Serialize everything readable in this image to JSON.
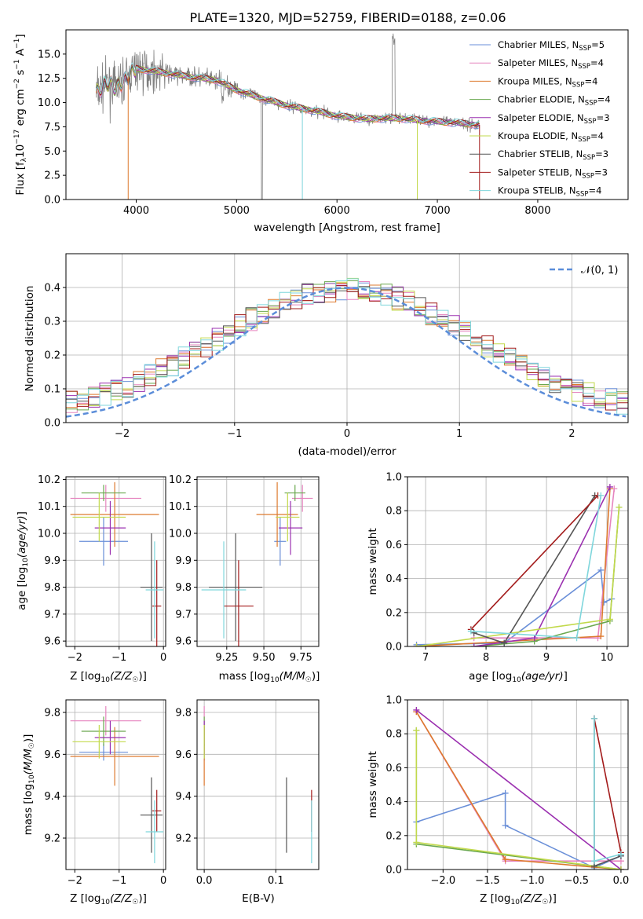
{
  "colors": {
    "Chabrier MILES": "#6a8fd8",
    "Salpeter MILES": "#e685bf",
    "Kroupa MILES": "#dd7a2e",
    "Chabrier ELODIE": "#6aa84f",
    "Salpeter ELODIE": "#9b30b0",
    "Kroupa ELODIE": "#c2d94c",
    "Chabrier STELIB": "#555555",
    "Salpeter STELIB": "#a31b1b",
    "Kroupa STELIB": "#7fd6dc",
    "data": "#808080"
  },
  "chart_data": [
    {
      "type": "line",
      "title": "PLATE=1320, MJD=52759, FIBERID=0188, z=0.06",
      "xlabel": "wavelength [Angstrom, rest frame]",
      "ylabel": "Flux [f$_\\lambda$10$^{-17}$ erg cm$^{-2}$ s$^{-1}$ A$^{-1}$]",
      "xlim": [
        3300,
        8900
      ],
      "ylim": [
        0,
        17.5
      ],
      "xticks": [
        4000,
        5000,
        6000,
        7000,
        8000
      ],
      "yticks": [
        0.0,
        2.5,
        5.0,
        7.5,
        10.0,
        12.5,
        15.0
      ],
      "legend_position": "upper-right",
      "legend": [
        {
          "model": "Chabrier MILES",
          "label": "Chabrier MILES, N",
          "sub": "SSP",
          "suffix": "=5"
        },
        {
          "model": "Salpeter MILES",
          "label": "Salpeter MILES, N",
          "sub": "SSP",
          "suffix": "=4"
        },
        {
          "model": "Kroupa MILES",
          "label": "Kroupa MILES, N",
          "sub": "SSP",
          "suffix": "=4"
        },
        {
          "model": "Chabrier ELODIE",
          "label": "Chabrier ELODIE, N",
          "sub": "SSP",
          "suffix": "=4"
        },
        {
          "model": "Salpeter ELODIE",
          "label": "Salpeter ELODIE, N",
          "sub": "SSP",
          "suffix": "=3"
        },
        {
          "model": "Kroupa ELODIE",
          "label": "Kroupa ELODIE, N",
          "sub": "SSP",
          "suffix": "=4"
        },
        {
          "model": "Chabrier STELIB",
          "label": "Chabrier STELIB, N",
          "sub": "SSP",
          "suffix": "=3"
        },
        {
          "model": "Salpeter STELIB",
          "label": "Salpeter STELIB, N",
          "sub": "SSP",
          "suffix": "=3"
        },
        {
          "model": "Kroupa STELIB",
          "label": "Kroupa STELIB, N",
          "sub": "SSP",
          "suffix": "=4"
        }
      ],
      "continuum": {
        "x": [
          3600,
          3700,
          3800,
          3900,
          4000,
          4200,
          4500,
          4800,
          5000,
          5200,
          5500,
          5800,
          6000,
          6300,
          6600,
          6900,
          7200,
          7400
        ],
        "y": [
          11.0,
          12.0,
          11.5,
          12.5,
          13.5,
          13.2,
          12.7,
          12.3,
          11.3,
          10.6,
          9.7,
          9.1,
          8.6,
          8.3,
          8.4,
          8.1,
          7.9,
          7.7
        ]
      }
    },
    {
      "type": "line",
      "xlabel": "(data-model)/error",
      "ylabel": "Normed distribution",
      "xlim": [
        -2.5,
        2.5
      ],
      "ylim": [
        0,
        0.5
      ],
      "xticks": [
        -2,
        -1,
        0,
        1,
        2
      ],
      "yticks": [
        0.0,
        0.1,
        0.2,
        0.3,
        0.4
      ],
      "bin_width": 0.1,
      "gauss_label": "𝒩(0, 1)",
      "gauss_color": "#5b8dd9",
      "grid": true
    },
    {
      "type": "scatter",
      "xlabel": "Z [log10(Z/Z☉)]",
      "ylabel": "age  [log10(age/yr)]",
      "xlim": [
        -2.2,
        0.05
      ],
      "ylim": [
        9.58,
        10.21
      ],
      "xticks": [
        -2,
        -1,
        0
      ],
      "yticks": [
        9.6,
        9.7,
        9.8,
        9.9,
        10.0,
        10.1,
        10.2
      ],
      "grid": true
    },
    {
      "type": "scatter",
      "xlabel": "mass [log10(M/M☉)]",
      "xlim": [
        9.05,
        9.87
      ],
      "ylim": [
        9.58,
        10.21
      ],
      "xticks": [
        9.25,
        9.5,
        9.75
      ],
      "yticks": [
        9.6,
        9.7,
        9.8,
        9.9,
        10.0,
        10.1,
        10.2
      ],
      "grid": true
    },
    {
      "type": "line",
      "xlabel": "age  [log10(age/yr)]",
      "ylabel": "mass weight",
      "xlim": [
        6.7,
        10.35
      ],
      "ylim": [
        0,
        1.0
      ],
      "xticks": [
        7,
        8,
        9,
        10
      ],
      "yticks": [
        0.0,
        0.2,
        0.4,
        0.6,
        0.8,
        1.0
      ],
      "grid": true
    },
    {
      "type": "scatter",
      "xlabel": "Z [log10(Z/Z☉)]",
      "ylabel": "mass [log10(M/M☉)]",
      "xlim": [
        -2.2,
        0.05
      ],
      "ylim": [
        9.05,
        9.86
      ],
      "xticks": [
        -2,
        -1,
        0
      ],
      "yticks": [
        9.2,
        9.4,
        9.6,
        9.8
      ],
      "grid": true
    },
    {
      "type": "scatter",
      "xlabel": "E(B-V)",
      "xlim": [
        -0.01,
        0.16
      ],
      "ylim": [
        9.05,
        9.86
      ],
      "xticks": [
        0.0,
        0.1
      ],
      "yticks": [
        9.2,
        9.4,
        9.6,
        9.8
      ],
      "grid": true
    },
    {
      "type": "line",
      "xlabel": "Z [log10(Z/Z☉)]",
      "ylabel": "mass weight",
      "xlim": [
        -2.4,
        0.08
      ],
      "ylim": [
        0,
        1.0
      ],
      "xticks": [
        -2.0,
        -1.5,
        -1.0,
        -0.5,
        0.0
      ],
      "yticks": [
        0.0,
        0.2,
        0.4,
        0.6,
        0.8,
        1.0
      ],
      "grid": true
    }
  ],
  "fits": [
    {
      "model": "Chabrier MILES",
      "Z": -1.35,
      "Zerr": 0.55,
      "age": 9.97,
      "ageerr": 0.09,
      "mass": 9.61,
      "masserr": 0.04,
      "massmerr": 9.66,
      "ebv": 0.0,
      "sfh_age": [
        [
          6.85,
          0.01
        ],
        [
          8.3,
          0.02
        ],
        [
          9.9,
          0.45
        ],
        [
          9.95,
          0.26
        ],
        [
          10.08,
          0.28
        ]
      ],
      "sfh_Z": [
        [
          -2.3,
          0.28
        ],
        [
          -1.3,
          0.45
        ],
        [
          -1.3,
          0.26
        ],
        [
          -0.3,
          0.01
        ],
        [
          0.0,
          0.08
        ]
      ]
    },
    {
      "model": "Salpeter MILES",
      "Z": -1.3,
      "Zerr": 0.8,
      "age": 10.13,
      "ageerr": 0.05,
      "mass": 9.76,
      "masserr": 0.07,
      "ebv": 0.0,
      "sfh_age": [
        [
          7.8,
          0.05
        ],
        [
          9.85,
          0.05
        ],
        [
          10.12,
          0.93
        ]
      ],
      "sfh_Z": [
        [
          -2.3,
          0.93
        ],
        [
          -1.3,
          0.05
        ],
        [
          0.0,
          0.05
        ]
      ]
    },
    {
      "model": "Kroupa MILES",
      "Z": -1.1,
      "Zerr": 1.0,
      "age": 10.07,
      "ageerr": 0.12,
      "mass": 9.59,
      "masserr": 0.14,
      "ebv": 0.0,
      "sfh_age": [
        [
          6.85,
          0.0
        ],
        [
          9.9,
          0.06
        ],
        [
          10.05,
          0.93
        ]
      ],
      "sfh_Z": [
        [
          -2.3,
          0.93
        ],
        [
          -1.3,
          0.06
        ],
        [
          0.0,
          0.0
        ]
      ]
    },
    {
      "model": "Chabrier ELODIE",
      "Z": -1.35,
      "Zerr": 0.5,
      "age": 10.15,
      "ageerr": 0.03,
      "mass": 9.71,
      "masserr": 0.07,
      "ebv": 0.0,
      "sfh_age": [
        [
          7.8,
          0.0
        ],
        [
          8.8,
          0.03
        ],
        [
          10.05,
          0.15
        ],
        [
          10.2,
          0.82
        ]
      ],
      "sfh_Z": [
        [
          -2.3,
          0.82
        ],
        [
          -2.3,
          0.15
        ],
        [
          0.0,
          0.0
        ]
      ]
    },
    {
      "model": "Salpeter ELODIE",
      "Z": -1.2,
      "Zerr": 0.35,
      "age": 10.02,
      "ageerr": 0.1,
      "mass": 9.68,
      "masserr": 0.08,
      "ebv": 0.0,
      "sfh_age": [
        [
          7.8,
          0.0
        ],
        [
          8.8,
          0.05
        ],
        [
          10.05,
          0.94
        ]
      ],
      "sfh_Z": [
        [
          -2.3,
          0.94
        ],
        [
          0.0,
          0.0
        ]
      ]
    },
    {
      "model": "Kroupa ELODIE",
      "Z": -1.45,
      "Zerr": 0.6,
      "age": 10.06,
      "ageerr": 0.09,
      "mass": 9.66,
      "masserr": 0.08,
      "ebv": 0.0,
      "sfh_age": [
        [
          6.85,
          0.0
        ],
        [
          10.05,
          0.16
        ],
        [
          10.2,
          0.82
        ]
      ],
      "sfh_Z": [
        [
          -2.3,
          0.82
        ],
        [
          -2.3,
          0.16
        ],
        [
          0.0,
          0.0
        ]
      ]
    },
    {
      "model": "Chabrier STELIB",
      "Z": -0.27,
      "Zerr": 0.25,
      "age": 9.8,
      "ageerr": 0.2,
      "mass": 9.31,
      "masserr": 0.18,
      "ebv": 0.115,
      "sfh_age": [
        [
          7.8,
          0.08
        ],
        [
          8.3,
          0.02
        ],
        [
          9.8,
          0.89
        ]
      ],
      "sfh_Z": [
        [
          -0.3,
          0.89
        ],
        [
          -0.3,
          0.02
        ],
        [
          0.0,
          0.08
        ]
      ]
    },
    {
      "model": "Salpeter STELIB",
      "Z": -0.15,
      "Zerr": 0.1,
      "age": 9.73,
      "ageerr": 0.17,
      "mass": 9.33,
      "masserr": 0.1,
      "ebv": 0.15,
      "sfh_age": [
        [
          7.75,
          0.1
        ],
        [
          9.85,
          0.89
        ]
      ],
      "sfh_Z": [
        [
          -0.3,
          0.89
        ],
        [
          0.0,
          0.1
        ]
      ]
    },
    {
      "model": "Kroupa STELIB",
      "Z": -0.2,
      "Zerr": 0.2,
      "age": 9.79,
      "ageerr": 0.18,
      "mass": 9.23,
      "masserr": 0.15,
      "ebv": 0.15,
      "sfh_age": [
        [
          7.75,
          0.09
        ],
        [
          9.5,
          0.05
        ],
        [
          9.9,
          0.89
        ]
      ],
      "sfh_Z": [
        [
          -0.3,
          0.89
        ],
        [
          -0.3,
          0.05
        ],
        [
          0.0,
          0.09
        ]
      ]
    }
  ]
}
